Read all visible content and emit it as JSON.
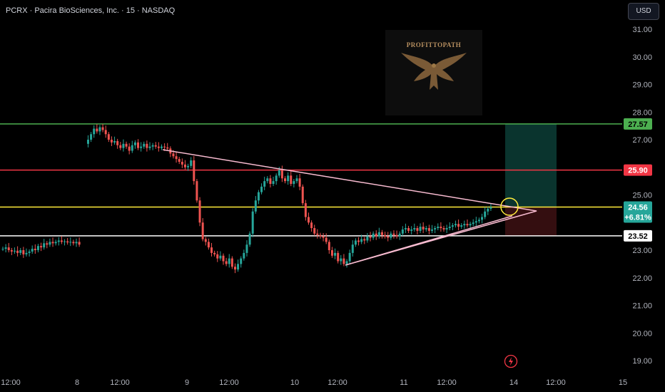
{
  "header": {
    "symbol_line": "PCRX · Pacira BioSciences, Inc. · 15 · NASDAQ",
    "currency": "USD"
  },
  "watermark": {
    "logo_text": "PROFITTOPATH",
    "icon": "eagle-icon"
  },
  "colors": {
    "up": "#26a69a",
    "down": "#ef5350",
    "target_line": "#4caf50",
    "resistance_line": "#f23645",
    "current_line": "#ffeb3b",
    "support_line": "#ffffff",
    "triangle": "#f8bbd0",
    "zone_up": "#0b3a33",
    "zone_down": "#3a0f12"
  },
  "levels": [
    {
      "name": "target",
      "price": 27.57,
      "label": "27.57"
    },
    {
      "name": "resistance",
      "price": 25.9,
      "label": "25.90"
    },
    {
      "name": "current",
      "price": 24.56,
      "label": "24.56",
      "change": "+6.81%"
    },
    {
      "name": "support",
      "price": 23.52,
      "label": "23.52"
    }
  ],
  "chart_data": {
    "type": "candlestick",
    "y_axis": {
      "min": 18.7,
      "max": 31.3,
      "ticks": [
        "31.00",
        "30.00",
        "29.00",
        "28.00",
        "27.00",
        "25.00",
        "23.00",
        "22.00",
        "21.00",
        "20.00",
        "19.00"
      ]
    },
    "x_axis": {
      "ticks": [
        "12:00",
        "8",
        "12:00",
        "9",
        "12:00",
        "10",
        "12:00",
        "11",
        "12:00",
        "14",
        "12:00",
        "15"
      ]
    },
    "closes": [
      23.05,
      23.1,
      23.0,
      22.95,
      22.98,
      22.9,
      23.0,
      22.85,
      22.9,
      22.95,
      23.05,
      23.0,
      23.15,
      23.1,
      23.25,
      23.2,
      23.3,
      23.25,
      23.3,
      23.35,
      23.3,
      23.32,
      23.28,
      23.3,
      23.25,
      23.3,
      23.2,
      null,
      null,
      27.0,
      27.2,
      27.4,
      27.3,
      27.45,
      27.35,
      27.2,
      27.0,
      26.9,
      26.95,
      26.8,
      26.7,
      26.85,
      26.75,
      26.6,
      26.8,
      26.9,
      26.7,
      26.75,
      26.85,
      26.7,
      26.75,
      26.8,
      26.75,
      26.7,
      26.75,
      26.72,
      26.68,
      26.5,
      26.4,
      26.3,
      26.2,
      26.1,
      26.0,
      26.05,
      26.25,
      25.5,
      24.8,
      24.0,
      23.4,
      23.3,
      23.1,
      22.9,
      22.85,
      22.7,
      22.8,
      22.6,
      22.5,
      22.7,
      22.4,
      22.3,
      22.5,
      22.7,
      22.9,
      23.2,
      23.6,
      24.4,
      24.8,
      25.1,
      25.3,
      25.5,
      25.6,
      25.4,
      25.5,
      25.7,
      25.9,
      25.6,
      25.5,
      25.7,
      25.4,
      25.5,
      25.6,
      25.3,
      24.7,
      24.2,
      24.0,
      23.8,
      23.6,
      23.55,
      23.5,
      23.45,
      23.3,
      23.0,
      22.8,
      22.9,
      22.6,
      22.7,
      22.5,
      22.6,
      22.9,
      23.2,
      23.35,
      23.3,
      23.4,
      23.35,
      23.5,
      23.45,
      23.6,
      23.5,
      23.65,
      23.55,
      23.5,
      23.45,
      23.6,
      23.55,
      23.5,
      23.6,
      23.75,
      23.8,
      23.7,
      23.75,
      23.8,
      23.7,
      23.85,
      23.75,
      23.8,
      23.7,
      23.75,
      23.8,
      23.85,
      23.8,
      23.75,
      23.8,
      23.85,
      23.9,
      23.95,
      23.85,
      23.9,
      23.95,
      23.9,
      23.95,
      24.0,
      24.05,
      24.1,
      24.2,
      24.4,
      24.5,
      24.56
    ]
  }
}
